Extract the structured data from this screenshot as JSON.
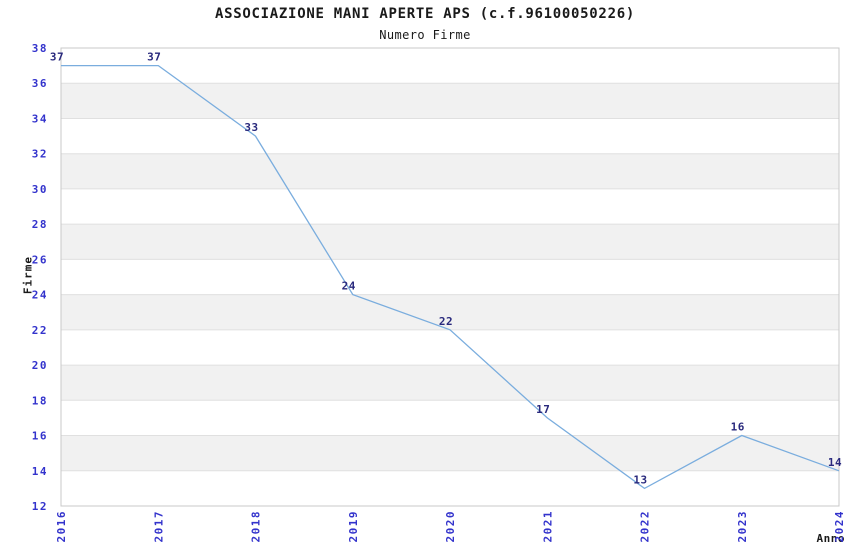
{
  "chart_data": {
    "type": "line",
    "title": "ASSOCIAZIONE MANI APERTE APS (c.f.96100050226)",
    "subtitle": "Numero Firme",
    "xlabel": "Anno",
    "ylabel": "Firme",
    "categories": [
      "2016",
      "2017",
      "2018",
      "2019",
      "2020",
      "2021",
      "2022",
      "2023",
      "2024"
    ],
    "values": [
      37,
      37,
      33,
      24,
      22,
      17,
      13,
      16,
      14
    ],
    "ylim": [
      12,
      38
    ],
    "ytick_step": 2,
    "yticks": [
      12,
      14,
      16,
      18,
      20,
      22,
      24,
      26,
      28,
      30,
      32,
      34,
      36,
      38
    ],
    "grid": "horizontal-bands-alternating",
    "legend": "none",
    "data_labels_visible": true,
    "colors": {
      "line": "#7aadde",
      "tick_label": "#3333cc",
      "data_label": "#29297d",
      "band": "#f1f1f1",
      "gridline": "#e0e0e0",
      "plot_border": "#c9c9c9",
      "text": "#1a1a1a",
      "background": "#ffffff"
    }
  }
}
